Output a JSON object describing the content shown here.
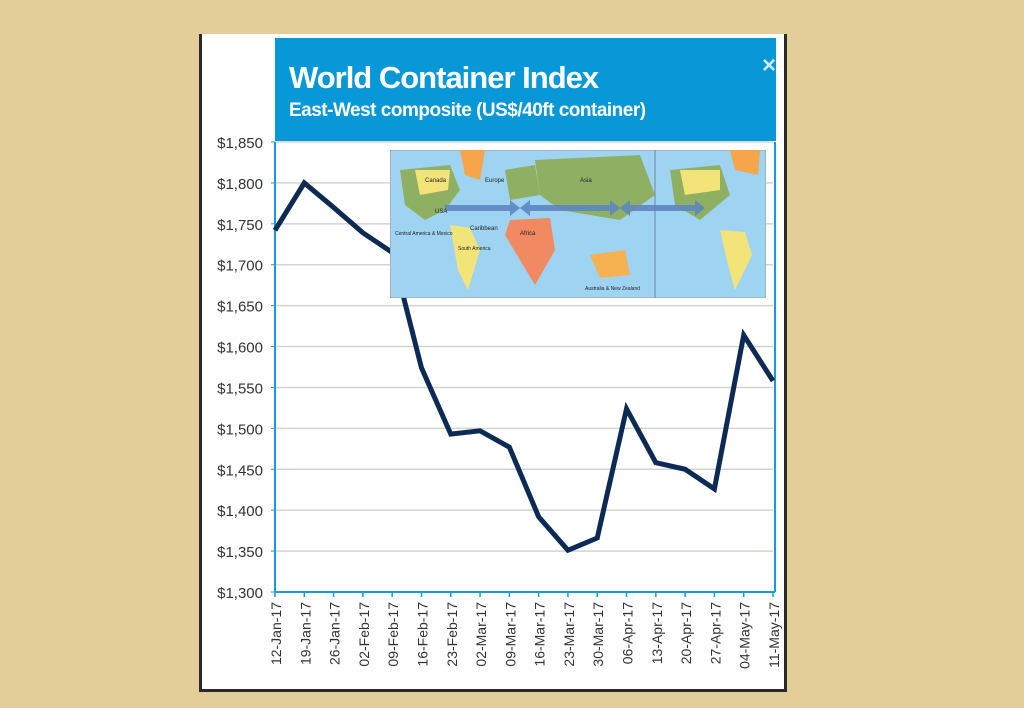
{
  "chart_data": {
    "type": "line",
    "title": "World Container Index",
    "subtitle": "East-West composite (US$/40ft container)",
    "xlabel": "",
    "ylabel": "",
    "ylim": [
      1300,
      1850
    ],
    "yticks": [
      "$1,300",
      "$1,350",
      "$1,400",
      "$1,450",
      "$1,500",
      "$1,550",
      "$1,600",
      "$1,650",
      "$1,700",
      "$1,750",
      "$1,800",
      "$1,850"
    ],
    "categories": [
      "12-Jan-17",
      "19-Jan-17",
      "26-Jan-17",
      "02-Feb-17",
      "09-Feb-17",
      "16-Feb-17",
      "23-Feb-17",
      "02-Mar-17",
      "09-Mar-17",
      "16-Mar-17",
      "23-Mar-17",
      "30-Mar-17",
      "06-Apr-17",
      "13-Apr-17",
      "20-Apr-17",
      "27-Apr-17",
      "04-May-17",
      "11-May-17"
    ],
    "series": [
      {
        "name": "World Container Index",
        "color": "#0d2a55",
        "values": [
          1742,
          1800,
          1770,
          1739,
          1715,
          1574,
          1493,
          1497,
          1477,
          1392,
          1351,
          1366,
          1524,
          1458,
          1450,
          1426,
          1614,
          1558
        ]
      }
    ],
    "grid": true,
    "legend": "none"
  },
  "banner": {
    "close_label": "×",
    "color": "#0898d8"
  },
  "map": {
    "labels": [
      "Canada",
      "Europe",
      "Asia",
      "USA",
      "Caribbean",
      "Africa",
      "Central America & Mexico",
      "South America",
      "Australia & New Zealand"
    ]
  }
}
